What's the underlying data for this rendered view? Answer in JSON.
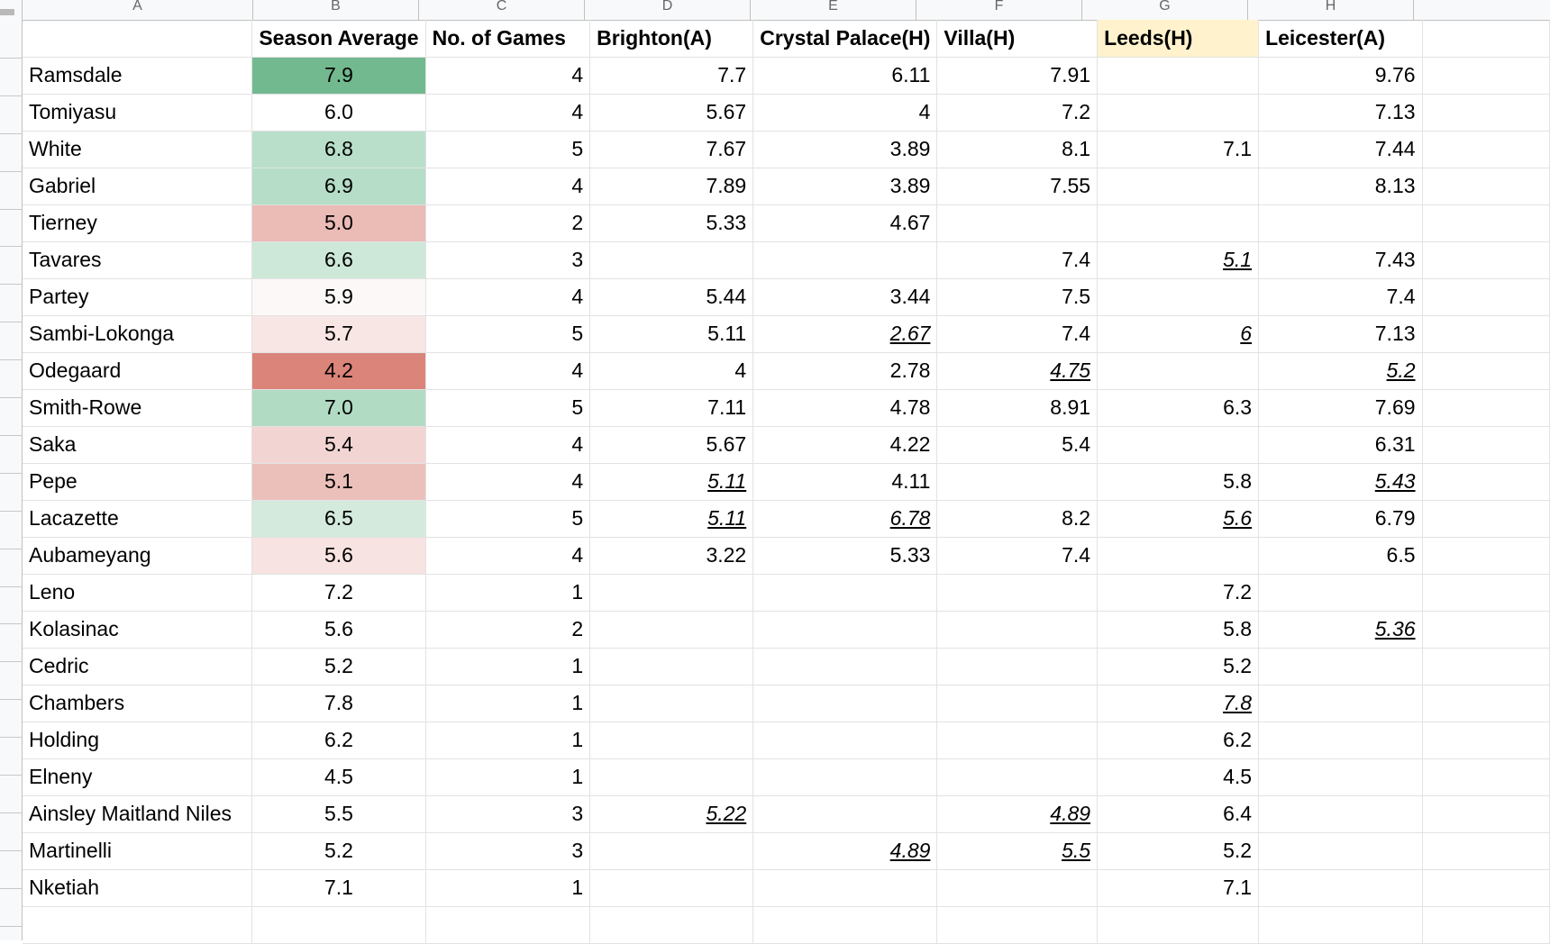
{
  "column_letters": [
    "A",
    "B",
    "C",
    "D",
    "E",
    "F",
    "G",
    "H"
  ],
  "headers": {
    "name": "",
    "avg": "Season Average",
    "games": "No. of Games",
    "matches": [
      "Brighton(A)",
      "Crystal Palace(H)",
      "Villa(H)",
      "Leeds(H)",
      "Leicester(A)"
    ]
  },
  "colors": {
    "highlight_header": "#fff2cc",
    "scale_green": "#57bb8a",
    "scale_white": "#ffffff",
    "scale_red": "#e67c73"
  },
  "rows": [
    {
      "name": "Ramsdale",
      "avg": "7.9",
      "bg": "#73b98f",
      "games": "4",
      "scores": [
        "7.7",
        "6.11",
        "7.91",
        "",
        "9.76"
      ],
      "ital": [
        0,
        0,
        0,
        0,
        0
      ]
    },
    {
      "name": "Tomiyasu",
      "avg": "6.0",
      "bg": "#ffffff",
      "games": "4",
      "scores": [
        "5.67",
        "4",
        "7.2",
        "",
        "7.13"
      ],
      "ital": [
        0,
        0,
        0,
        0,
        0
      ]
    },
    {
      "name": "White",
      "avg": "6.8",
      "bg": "#b9dfca",
      "games": "5",
      "scores": [
        "7.67",
        "3.89",
        "8.1",
        "7.1",
        "7.44"
      ],
      "ital": [
        0,
        0,
        0,
        0,
        0
      ]
    },
    {
      "name": "Gabriel",
      "avg": "6.9",
      "bg": "#b5ddc7",
      "games": "4",
      "scores": [
        "7.89",
        "3.89",
        "7.55",
        "",
        "8.13"
      ],
      "ital": [
        0,
        0,
        0,
        0,
        0
      ]
    },
    {
      "name": "Tierney",
      "avg": "5.0",
      "bg": "#ebbbb6",
      "games": "2",
      "scores": [
        "5.33",
        "4.67",
        "",
        "",
        ""
      ],
      "ital": [
        0,
        0,
        0,
        0,
        0
      ]
    },
    {
      "name": "Tavares",
      "avg": "6.6",
      "bg": "#cde8d8",
      "games": "3",
      "scores": [
        "",
        "",
        "7.4",
        "5.1",
        "7.43"
      ],
      "ital": [
        0,
        0,
        0,
        1,
        0
      ]
    },
    {
      "name": "Partey",
      "avg": "5.9",
      "bg": "#fdf8f8",
      "games": "4",
      "scores": [
        "5.44",
        "3.44",
        "7.5",
        "",
        "7.4"
      ],
      "ital": [
        0,
        0,
        0,
        0,
        0
      ]
    },
    {
      "name": "Sambi-Lokonga",
      "avg": "5.7",
      "bg": "#f8e6e4",
      "games": "5",
      "scores": [
        "5.11",
        "2.67",
        "7.4",
        "6",
        "7.13"
      ],
      "ital": [
        0,
        1,
        0,
        1,
        0
      ]
    },
    {
      "name": "Odegaard",
      "avg": "4.2",
      "bg": "#db847a",
      "games": "4",
      "scores": [
        "4",
        "2.78",
        "4.75",
        "",
        "5.2"
      ],
      "ital": [
        0,
        0,
        1,
        0,
        1
      ]
    },
    {
      "name": "Smith-Rowe",
      "avg": "7.0",
      "bg": "#b2dbc4",
      "games": "5",
      "scores": [
        "7.11",
        "4.78",
        "8.91",
        "6.3",
        "7.69"
      ],
      "ital": [
        0,
        0,
        0,
        0,
        0
      ]
    },
    {
      "name": "Saka",
      "avg": "5.4",
      "bg": "#f2d5d3",
      "games": "4",
      "scores": [
        "5.67",
        "4.22",
        "5.4",
        "",
        "6.31"
      ],
      "ital": [
        0,
        0,
        0,
        0,
        0
      ]
    },
    {
      "name": "Pepe",
      "avg": "5.1",
      "bg": "#ebc0bb",
      "games": "4",
      "scores": [
        "5.11",
        "4.11",
        "",
        "5.8",
        "5.43"
      ],
      "ital": [
        1,
        0,
        0,
        0,
        1
      ]
    },
    {
      "name": "Lacazette",
      "avg": "6.5",
      "bg": "#d3eadd",
      "games": "5",
      "scores": [
        "5.11",
        "6.78",
        "8.2",
        "5.6",
        "6.79"
      ],
      "ital": [
        1,
        1,
        0,
        1,
        0
      ]
    },
    {
      "name": "Aubameyang",
      "avg": "5.6",
      "bg": "#f7e3e1",
      "games": "4",
      "scores": [
        "3.22",
        "5.33",
        "7.4",
        "",
        "6.5"
      ],
      "ital": [
        0,
        0,
        0,
        0,
        0
      ]
    },
    {
      "name": "Leno",
      "avg": "7.2",
      "bg": "#ffffff",
      "games": "1",
      "scores": [
        "",
        "",
        "",
        "7.2",
        ""
      ],
      "ital": [
        0,
        0,
        0,
        0,
        0
      ]
    },
    {
      "name": "Kolasinac",
      "avg": "5.6",
      "bg": "#ffffff",
      "games": "2",
      "scores": [
        "",
        "",
        "",
        "5.8",
        "5.36"
      ],
      "ital": [
        0,
        0,
        0,
        0,
        1
      ]
    },
    {
      "name": "Cedric",
      "avg": "5.2",
      "bg": "#ffffff",
      "games": "1",
      "scores": [
        "",
        "",
        "",
        "5.2",
        ""
      ],
      "ital": [
        0,
        0,
        0,
        0,
        0
      ]
    },
    {
      "name": "Chambers",
      "avg": "7.8",
      "bg": "#ffffff",
      "games": "1",
      "scores": [
        "",
        "",
        "",
        "7.8",
        ""
      ],
      "ital": [
        0,
        0,
        0,
        1,
        0
      ]
    },
    {
      "name": "Holding",
      "avg": "6.2",
      "bg": "#ffffff",
      "games": "1",
      "scores": [
        "",
        "",
        "",
        "6.2",
        ""
      ],
      "ital": [
        0,
        0,
        0,
        0,
        0
      ]
    },
    {
      "name": "Elneny",
      "avg": "4.5",
      "bg": "#ffffff",
      "games": "1",
      "scores": [
        "",
        "",
        "",
        "4.5",
        ""
      ],
      "ital": [
        0,
        0,
        0,
        0,
        0
      ]
    },
    {
      "name": "Ainsley Maitland Niles",
      "avg": "5.5",
      "bg": "#ffffff",
      "games": "3",
      "scores": [
        "5.22",
        "",
        "4.89",
        "6.4",
        ""
      ],
      "ital": [
        1,
        0,
        1,
        0,
        0
      ]
    },
    {
      "name": "Martinelli",
      "avg": "5.2",
      "bg": "#ffffff",
      "games": "3",
      "scores": [
        "",
        "4.89",
        "5.5",
        "5.2",
        ""
      ],
      "ital": [
        0,
        1,
        1,
        0,
        0
      ]
    },
    {
      "name": "Nketiah",
      "avg": "7.1",
      "bg": "#ffffff",
      "games": "1",
      "scores": [
        "",
        "",
        "",
        "7.1",
        ""
      ],
      "ital": [
        0,
        0,
        0,
        0,
        0
      ]
    }
  ]
}
